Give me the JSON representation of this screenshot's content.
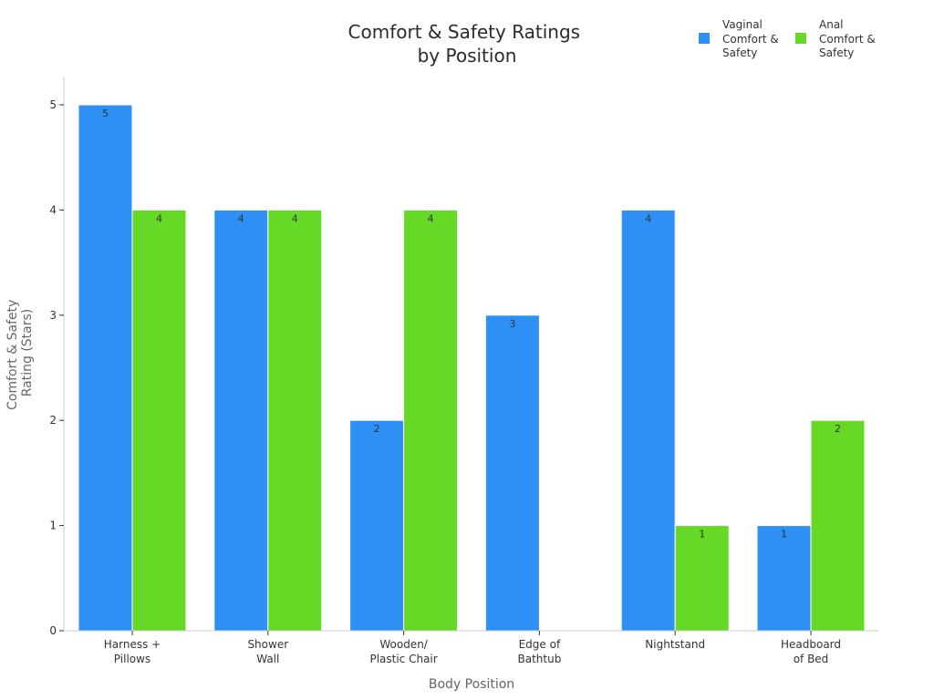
{
  "chart_data": {
    "type": "bar",
    "title": [
      "Comfort & Safety Ratings",
      "by Position"
    ],
    "xlabel": "Body Position",
    "ylabel": [
      "Comfort & Safety",
      "Rating (Stars)"
    ],
    "ylim": [
      0,
      5.25
    ],
    "yticks": [
      0,
      1,
      2,
      3,
      4,
      5
    ],
    "categories": [
      [
        "Harness +",
        "Pillows"
      ],
      [
        "Shower",
        "Wall"
      ],
      [
        "Wooden/",
        "Plastic Chair"
      ],
      [
        "Edge of",
        "Bathtub"
      ],
      [
        "Nightstand"
      ],
      [
        "Headboard",
        "of Bed"
      ]
    ],
    "series": [
      {
        "name": [
          "Vaginal",
          "Comfort &",
          "Safety"
        ],
        "color": "#2e90f5",
        "values": [
          5,
          4,
          2,
          3,
          4,
          1
        ]
      },
      {
        "name": [
          "Anal",
          "Comfort &",
          "Safety"
        ],
        "color": "#66d926",
        "values": [
          4,
          4,
          4,
          null,
          1,
          2
        ]
      }
    ],
    "legend_position": "top-right",
    "grid": false
  }
}
